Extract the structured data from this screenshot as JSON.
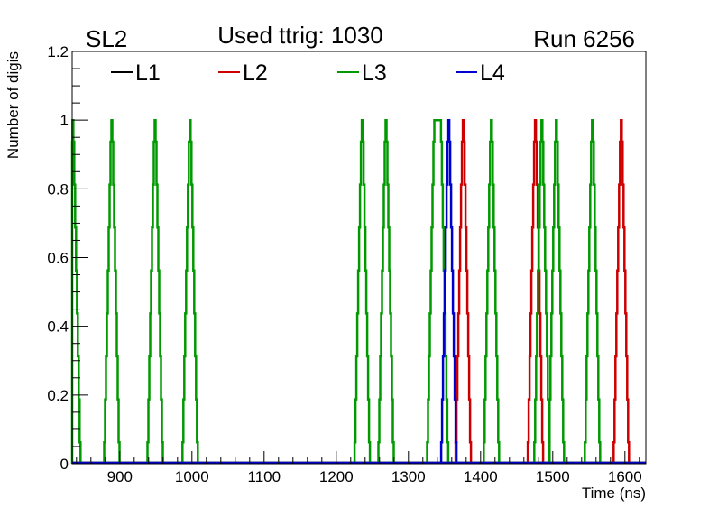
{
  "chart_data": {
    "type": "line",
    "histogram_style": "step",
    "title": "Used ttrig: 1030",
    "label_left": "SL2",
    "label_right": "Run 6256",
    "xlabel": "Time (ns)",
    "ylabel": "Number of digis",
    "xlim": [
      834,
      1629
    ],
    "ylim": [
      0,
      1.2
    ],
    "xticks": [
      900,
      1000,
      1100,
      1200,
      1300,
      1400,
      1500,
      1600
    ],
    "xtick_labels": [
      "900",
      "1000",
      "1100",
      "1200",
      "1300",
      "1400",
      "1500",
      "1600"
    ],
    "x_minor_step": 20,
    "yticks": [
      0,
      0.2,
      0.4,
      0.6,
      0.8,
      1,
      1.2
    ],
    "ytick_labels": [
      "0",
      "0.2",
      "0.4",
      "0.6",
      "0.8",
      "1",
      "1.2"
    ],
    "y_minor_step": 0.05,
    "grid": false,
    "legend_position": "top",
    "bin_width_ns": 1.25,
    "peak_profile": [
      1,
      0.9375,
      0.8125,
      0.6875,
      0.5625,
      0.4375,
      0.3125,
      0.1875,
      0.0625
    ],
    "series": [
      {
        "name": "L1",
        "color": "#000000",
        "peaks": []
      },
      {
        "name": "L2",
        "color": "#cc0000",
        "peaks": [
          {
            "center": 1376,
            "plateau": 0
          },
          {
            "center": 1476,
            "plateau": 0
          },
          {
            "center": 1595,
            "plateau": 0
          }
        ]
      },
      {
        "name": "L3",
        "color": "#009900",
        "peaks": [
          {
            "center": 835,
            "plateau": 0
          },
          {
            "center": 889,
            "plateau": 0
          },
          {
            "center": 949,
            "plateau": 0
          },
          {
            "center": 997.5,
            "plateau": 0
          },
          {
            "center": 1236,
            "plateau": 0
          },
          {
            "center": 1269,
            "plateau": 0
          },
          {
            "center": 1340.5,
            "plateau": 8
          },
          {
            "center": 1415,
            "plateau": 0
          },
          {
            "center": 1485,
            "plateau": 0
          },
          {
            "center": 1505,
            "plateau": 0
          },
          {
            "center": 1555,
            "plateau": 0
          }
        ]
      },
      {
        "name": "L4",
        "color": "#0000cc",
        "peaks": [
          {
            "center": 1356,
            "plateau": 0
          }
        ]
      }
    ]
  }
}
